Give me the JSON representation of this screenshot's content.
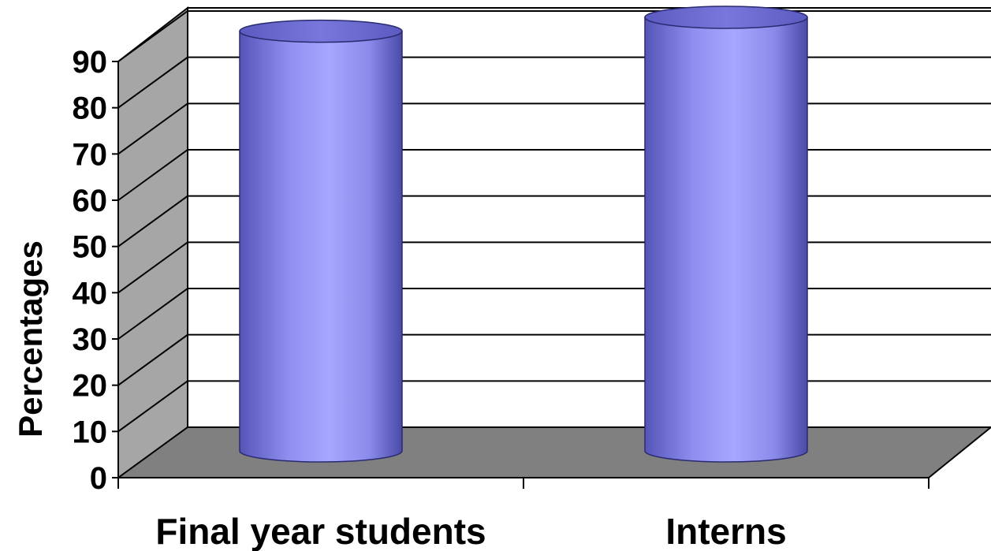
{
  "chart_data": {
    "type": "bar",
    "style": "3d-cylinder",
    "categories": [
      "Final year students",
      "Interns"
    ],
    "values": [
      87,
      90
    ],
    "title": "",
    "xlabel": "",
    "ylabel": "Percentages",
    "ylim": [
      0,
      90
    ],
    "yticks": [
      "0",
      "10",
      "20",
      "30",
      "40",
      "50",
      "60",
      "70",
      "80",
      "90"
    ],
    "grid": true,
    "legend": "none",
    "colors": {
      "bar": "#9999ff",
      "bar_dark": "#4b4bb0",
      "bar_light": "#b4b4ff",
      "wall": "#c0c0c0",
      "side_wall": "#a6a6a6",
      "floor": "#808080",
      "grid": "#000000"
    }
  }
}
